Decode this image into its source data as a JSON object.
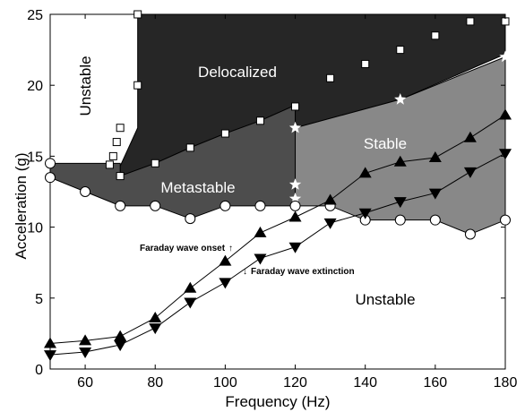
{
  "chart_data": {
    "type": "line",
    "xlabel": "Frequency (Hz)",
    "ylabel": "Acceleration (g)",
    "xlim": [
      50,
      180
    ],
    "ylim": [
      0,
      25
    ],
    "xticks": [
      "60",
      "80",
      "100",
      "120",
      "140",
      "160",
      "180"
    ],
    "yticks": [
      "0",
      "5",
      "10",
      "15",
      "20",
      "25"
    ],
    "regions": [
      {
        "label": "Delocalized",
        "color": "#262626",
        "text_color": "#ffffff",
        "polygon": [
          [
            75,
            25
          ],
          [
            180,
            25
          ],
          [
            180,
            22.2
          ],
          [
            150,
            19
          ],
          [
            120,
            17
          ],
          [
            120,
            18.6
          ],
          [
            110,
            17.5
          ],
          [
            100,
            16.6
          ],
          [
            90,
            15.6
          ],
          [
            80,
            14.5
          ],
          [
            70,
            13.6
          ],
          [
            70,
            14.3
          ],
          [
            75,
            17
          ]
        ]
      },
      {
        "label": "Metastable",
        "color": "#4d4d4d",
        "text_color": "#ffffff",
        "polygon": [
          [
            50,
            14.5
          ],
          [
            70,
            14.5
          ],
          [
            70,
            13.6
          ],
          [
            80,
            14.5
          ],
          [
            90,
            15.6
          ],
          [
            100,
            16.6
          ],
          [
            110,
            17.5
          ],
          [
            120,
            18.6
          ],
          [
            120,
            11.5
          ],
          [
            110,
            11.5
          ],
          [
            100,
            11.5
          ],
          [
            90,
            10.6
          ],
          [
            80,
            11.5
          ],
          [
            70,
            11.5
          ],
          [
            60,
            12.5
          ],
          [
            50,
            13.5
          ]
        ]
      },
      {
        "label": "Stable",
        "color": "#888888",
        "text_color": "#ffffff",
        "polygon": [
          [
            120,
            17
          ],
          [
            150,
            19
          ],
          [
            180,
            22
          ],
          [
            180,
            10.5
          ],
          [
            170,
            9.5
          ],
          [
            160,
            10.5
          ],
          [
            150,
            10.5
          ],
          [
            140,
            10.5
          ],
          [
            130,
            11.5
          ],
          [
            120,
            11.5
          ]
        ]
      },
      {
        "label": "Unstable",
        "color": "#ffffff",
        "text_color": "#000000",
        "position": "top-left",
        "rotated": true
      },
      {
        "label": "Unstable",
        "color": "#ffffff",
        "text_color": "#000000",
        "position": "bottom-right",
        "rotated": false
      }
    ],
    "series": [
      {
        "marker": "square-open",
        "x": [
          67,
          68,
          69,
          70,
          75,
          75,
          70,
          80,
          90,
          100,
          110,
          120,
          130,
          140,
          150,
          160,
          170,
          180
        ],
        "y": [
          14.4,
          15,
          16,
          17,
          20,
          25,
          13.6,
          14.5,
          15.6,
          16.6,
          17.5,
          18.5,
          20.5,
          21.5,
          22.5,
          23.5,
          24.5,
          24.5
        ]
      },
      {
        "marker": "star-white",
        "x": [
          120,
          120,
          120,
          150,
          180
        ],
        "y": [
          12,
          13,
          17,
          19,
          22
        ]
      },
      {
        "marker": "circle-open",
        "x": [
          50,
          50,
          60,
          70,
          80,
          90,
          100,
          110,
          120,
          130,
          140,
          150,
          160,
          170,
          180
        ],
        "y": [
          14.5,
          13.5,
          12.5,
          11.5,
          11.5,
          10.6,
          11.5,
          11.5,
          11.5,
          11.5,
          10.5,
          10.5,
          10.5,
          9.5,
          10.5
        ]
      },
      {
        "name": "Faraday wave onset",
        "marker": "triangle-up",
        "x": [
          50,
          60,
          70,
          80,
          90,
          100,
          110,
          120,
          130,
          140,
          150,
          160,
          170,
          180
        ],
        "y": [
          1.8,
          2,
          2.3,
          3.6,
          5.7,
          7.6,
          9.6,
          10.7,
          11.9,
          13.8,
          14.6,
          14.9,
          16.3,
          17.9
        ]
      },
      {
        "name": "Faraday wave extinction",
        "marker": "triangle-down",
        "x": [
          50,
          60,
          70,
          80,
          90,
          100,
          110,
          120,
          130,
          140,
          150,
          160,
          170,
          180
        ],
        "y": [
          1,
          1.2,
          1.7,
          2.9,
          4.7,
          6.1,
          7.8,
          8.6,
          10.3,
          11,
          11.8,
          12.4,
          13.9,
          15.2
        ]
      }
    ],
    "annotations": [
      {
        "text": "Faraday wave onset",
        "arrow": "↑"
      },
      {
        "text": "Faraday wave extinction",
        "arrow": "↓"
      }
    ]
  }
}
